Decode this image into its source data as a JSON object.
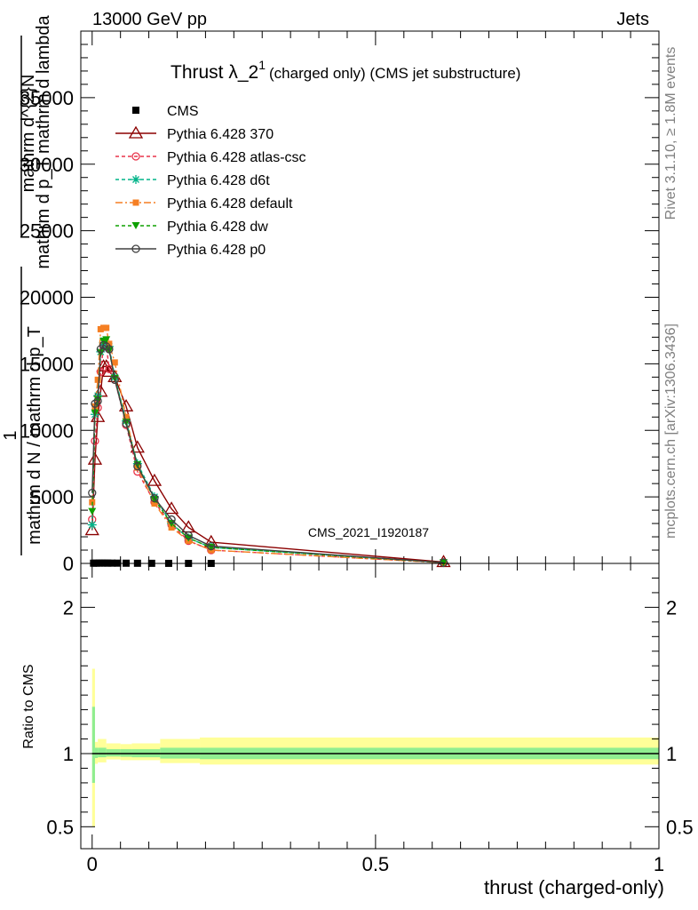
{
  "header": {
    "left": "13000 GeV pp",
    "right": "Jets"
  },
  "side": {
    "rivet": "Rivet 3.1.10, ≥ 1.8M events",
    "mcplots": "mcplots.cern.ch [arXiv:1306.3436]"
  },
  "chart_data": [
    {
      "type": "line",
      "title": "Thrust λ_2",
      "title_sup": "1",
      "title_suffix": "(charged only) (CMS jet substructure)",
      "watermark": "CMS_2021_I1920187",
      "ylabel_lines": [
        "mathrm d^{2}N",
        "mathrm d p_T mathrm d lambda",
        "1",
        "mathrm d N / mathrm d p_T"
      ],
      "xlim": [
        -0.02,
        1.0
      ],
      "ylim": [
        0,
        40000
      ],
      "yticks": [
        0,
        5000,
        10000,
        15000,
        20000,
        25000,
        30000,
        35000
      ],
      "ytick_labels": [
        "0",
        "5000",
        "10000",
        "15000",
        "20000",
        "25000",
        "30000",
        "35000"
      ],
      "legend_position": "top-left",
      "series": [
        {
          "name": "CMS",
          "color": "#000000",
          "marker": "square",
          "dash": "",
          "x": [
            0.0025,
            0.0075,
            0.0125,
            0.0175,
            0.0225,
            0.0275,
            0.035,
            0.045,
            0.06,
            0.08,
            0.105,
            0.135,
            0.17,
            0.21
          ],
          "y": [
            18,
            22,
            26,
            28,
            26,
            24,
            22,
            20,
            16,
            12,
            8,
            5,
            3,
            2
          ]
        },
        {
          "name": "Pythia 6.428 370",
          "color": "#8b0000",
          "marker": "triangle-open",
          "dash": "",
          "x": [
            0.0,
            0.005,
            0.01,
            0.015,
            0.02,
            0.025,
            0.03,
            0.04,
            0.06,
            0.08,
            0.11,
            0.14,
            0.17,
            0.21,
            0.62
          ],
          "y": [
            2500,
            7800,
            11000,
            12900,
            14800,
            14800,
            14400,
            14000,
            11800,
            8700,
            6200,
            4100,
            2700,
            1600,
            100
          ]
        },
        {
          "name": "Pythia 6.428 atlas-csc",
          "color": "#e8334a",
          "marker": "circle-open",
          "dash": "4,3",
          "x": [
            0.0,
            0.005,
            0.01,
            0.015,
            0.02,
            0.025,
            0.03,
            0.04,
            0.06,
            0.08,
            0.11,
            0.14,
            0.17,
            0.21,
            0.62
          ],
          "y": [
            3300,
            9200,
            11700,
            14400,
            16300,
            16400,
            14600,
            13800,
            10400,
            6900,
            4600,
            2900,
            1700,
            1000,
            50
          ]
        },
        {
          "name": "Pythia 6.428 d6t",
          "color": "#00b489",
          "marker": "asterisk",
          "dash": "4,3",
          "x": [
            0.0,
            0.005,
            0.01,
            0.015,
            0.02,
            0.025,
            0.03,
            0.04,
            0.06,
            0.08,
            0.11,
            0.14,
            0.17,
            0.21,
            0.62
          ],
          "y": [
            2900,
            11200,
            12600,
            15900,
            16600,
            16400,
            16300,
            14000,
            10700,
            7500,
            5000,
            3000,
            1900,
            1200,
            60
          ]
        },
        {
          "name": "Pythia 6.428 default",
          "color": "#f57f23",
          "marker": "square-filled",
          "dash": "8,3,2,3",
          "x": [
            0.0,
            0.005,
            0.01,
            0.015,
            0.02,
            0.025,
            0.03,
            0.04,
            0.06,
            0.08,
            0.11,
            0.14,
            0.17,
            0.21,
            0.62
          ],
          "y": [
            4600,
            11800,
            13800,
            17600,
            17700,
            17700,
            16500,
            15100,
            11000,
            7200,
            4500,
            2700,
            1700,
            1000,
            50
          ]
        },
        {
          "name": "Pythia 6.428 dw",
          "color": "#0ea000",
          "marker": "triangle-down-filled",
          "dash": "4,3",
          "x": [
            0.0,
            0.005,
            0.01,
            0.015,
            0.02,
            0.025,
            0.03,
            0.04,
            0.06,
            0.08,
            0.11,
            0.14,
            0.17,
            0.21,
            0.62
          ],
          "y": [
            3900,
            11300,
            12300,
            15800,
            16700,
            16800,
            16000,
            13900,
            10600,
            7400,
            4800,
            3000,
            1900,
            1200,
            60
          ]
        },
        {
          "name": "Pythia 6.428 p0",
          "color": "#404040",
          "marker": "circle-open",
          "dash": "",
          "x": [
            0.0,
            0.005,
            0.01,
            0.015,
            0.02,
            0.025,
            0.03,
            0.04,
            0.06,
            0.08,
            0.11,
            0.14,
            0.17,
            0.21,
            0.62
          ],
          "y": [
            5300,
            12000,
            12200,
            16100,
            16400,
            16300,
            16100,
            13800,
            10500,
            7300,
            4900,
            3300,
            2100,
            1300,
            60
          ]
        }
      ]
    },
    {
      "type": "area",
      "ylabel": "Ratio to CMS",
      "xlabel": "thrust (charged-only)",
      "xlim": [
        -0.02,
        1.0
      ],
      "ylim": [
        0.35,
        2.3
      ],
      "yticks": [
        0.5,
        1,
        2
      ],
      "ytick_labels": [
        "0.5",
        "1",
        "2"
      ],
      "xticks": [
        0,
        0.5,
        1
      ],
      "xtick_labels": [
        "0",
        "0.5",
        "1"
      ],
      "band_colors": {
        "outer": "#ffff99",
        "inner": "#90ee90"
      },
      "bins": [
        {
          "lo": 0.0,
          "hi": 0.005,
          "inner": [
            0.8,
            1.32
          ],
          "outer": [
            0.5,
            1.58
          ]
        },
        {
          "lo": 0.005,
          "hi": 0.01,
          "inner": [
            0.97,
            1.04
          ],
          "outer": [
            0.93,
            1.08
          ]
        },
        {
          "lo": 0.01,
          "hi": 0.025,
          "inner": [
            0.975,
            1.04
          ],
          "outer": [
            0.94,
            1.1
          ]
        },
        {
          "lo": 0.025,
          "hi": 0.05,
          "inner": [
            0.98,
            1.03
          ],
          "outer": [
            0.96,
            1.07
          ]
        },
        {
          "lo": 0.05,
          "hi": 0.07,
          "inner": [
            0.978,
            1.03
          ],
          "outer": [
            0.955,
            1.065
          ]
        },
        {
          "lo": 0.07,
          "hi": 0.12,
          "inner": [
            0.975,
            1.03
          ],
          "outer": [
            0.955,
            1.07
          ]
        },
        {
          "lo": 0.12,
          "hi": 0.19,
          "inner": [
            0.966,
            1.04
          ],
          "outer": [
            0.935,
            1.1
          ]
        },
        {
          "lo": 0.19,
          "hi": 1.0,
          "inner": [
            0.962,
            1.04
          ],
          "outer": [
            0.925,
            1.11
          ]
        }
      ],
      "reference_line": 1
    }
  ]
}
